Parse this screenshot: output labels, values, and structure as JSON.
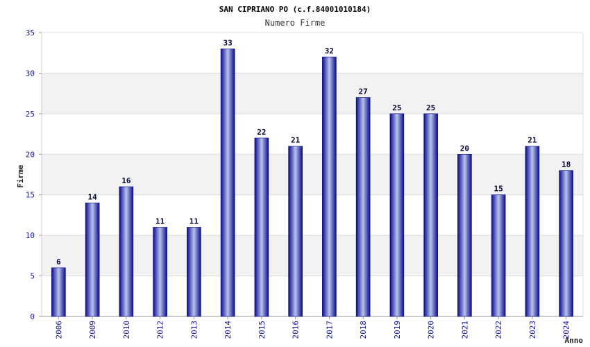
{
  "chart_data": {
    "type": "bar",
    "title": "SAN CIPRIANO PO (c.f.84001010184)",
    "subtitle": "Numero Firme",
    "xlabel": "Anno",
    "ylabel": "Firme",
    "ylim": [
      0,
      35
    ],
    "yticks": [
      0,
      5,
      10,
      15,
      20,
      25,
      30,
      35
    ],
    "grid": true,
    "categories": [
      "2006",
      "2009",
      "2010",
      "2012",
      "2013",
      "2014",
      "2015",
      "2016",
      "2017",
      "2018",
      "2019",
      "2020",
      "2021",
      "2022",
      "2023",
      "2024"
    ],
    "values": [
      6,
      14,
      16,
      11,
      11,
      33,
      22,
      21,
      32,
      27,
      25,
      25,
      20,
      15,
      21,
      18
    ],
    "colors": {
      "bar_edge": "#0a0a8a",
      "bar_center": "#b8c4ee",
      "band": "#f2f2f2",
      "grid": "#dcdcdc"
    }
  }
}
